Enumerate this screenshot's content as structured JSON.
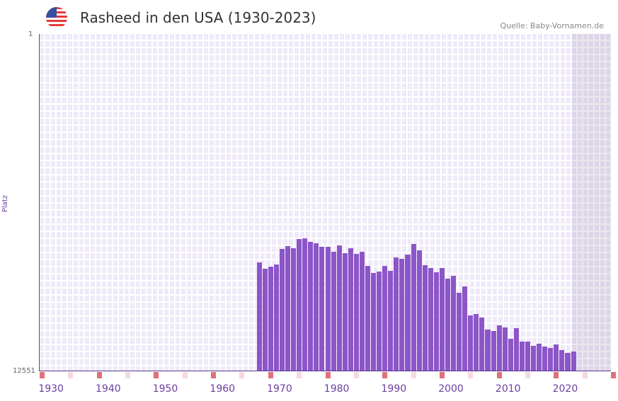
{
  "header": {
    "title": "Rasheed in den USA (1930-2023)",
    "source": "Quelle: Baby-Vornamen.de",
    "flag_icon": "us-flag-icon"
  },
  "chart_data": {
    "type": "bar",
    "title": "Rasheed in den USA (1930-2023)",
    "xlabel": "",
    "ylabel": "Platz",
    "ylim": [
      12551,
      1
    ],
    "y_ticks": [
      "1",
      "12551"
    ],
    "x_ticks": [
      "1930",
      "1940",
      "1950",
      "1960",
      "1970",
      "1980",
      "1990",
      "2000",
      "2010",
      "2020"
    ],
    "xlim": [
      1928,
      2028
    ],
    "bar_color": "#8c55c8",
    "x": [
      1966,
      1967,
      1968,
      1969,
      1970,
      1971,
      1972,
      1973,
      1974,
      1975,
      1976,
      1977,
      1978,
      1979,
      1980,
      1981,
      1982,
      1983,
      1984,
      1985,
      1986,
      1987,
      1988,
      1989,
      1990,
      1991,
      1992,
      1993,
      1994,
      1995,
      1996,
      1997,
      1998,
      1999,
      2000,
      2001,
      2002,
      2003,
      2004,
      2005,
      2006,
      2007,
      2008,
      2009,
      2010,
      2011,
      2012,
      2013,
      2014,
      2015,
      2016,
      2017,
      2018,
      2019,
      2020,
      2021
    ],
    "values": [
      8500,
      8736,
      8657,
      8578,
      7999,
      7895,
      7974,
      7632,
      7606,
      7737,
      7789,
      7921,
      7921,
      8105,
      7869,
      8158,
      7974,
      8184,
      8105,
      8631,
      8895,
      8842,
      8631,
      8816,
      8316,
      8369,
      8211,
      7816,
      8053,
      8605,
      8710,
      8868,
      8710,
      9105,
      9000,
      9631,
      9394,
      10473,
      10421,
      10552,
      10999,
      11051,
      10841,
      10920,
      11341,
      10946,
      11446,
      11446,
      11604,
      11525,
      11630,
      11683,
      11551,
      11762,
      11867,
      11814
    ]
  }
}
